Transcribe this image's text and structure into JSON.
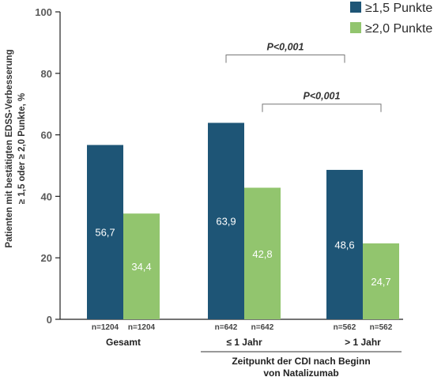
{
  "chart_data": {
    "type": "bar",
    "ylabel_line1": "Patienten mit bestätigten EDSS-Verbesserung",
    "ylabel_line2": "≥ 1,5 oder ≥ 2,0 Punkte, %",
    "ylim": [
      0,
      100
    ],
    "yticks": [
      0,
      20,
      40,
      60,
      80,
      100
    ],
    "legend_position": "top-right",
    "categories": [
      "Gesamt",
      "≤ 1 Jahr",
      "> 1 Jahr"
    ],
    "series": [
      {
        "name": "≥1,5 Punkte",
        "color": "#1e5576",
        "values": [
          56.7,
          63.9,
          48.6
        ],
        "labels": [
          "56,7",
          "63,9",
          "48,6"
        ],
        "n": [
          "n=1204",
          "n=642",
          "n=562"
        ]
      },
      {
        "name": "≥2,0 Punkte",
        "color": "#92c56e",
        "values": [
          34.4,
          42.8,
          24.7
        ],
        "labels": [
          "34,4",
          "42,8",
          "24,7"
        ],
        "n": [
          "n=1204",
          "n=642",
          "n=562"
        ]
      }
    ],
    "xgroup_title_line1": "Zeitpunkt der CDI nach Beginn",
    "xgroup_title_line2": "von Natalizumab",
    "annotations": [
      {
        "text": "P<0,001",
        "from_category": 1,
        "from_series": 0,
        "to_category": 2,
        "to_series": 0,
        "y": 86
      },
      {
        "text": "P<0,001",
        "from_category": 1,
        "from_series": 1,
        "to_category": 2,
        "to_series": 1,
        "y": 70
      }
    ]
  }
}
